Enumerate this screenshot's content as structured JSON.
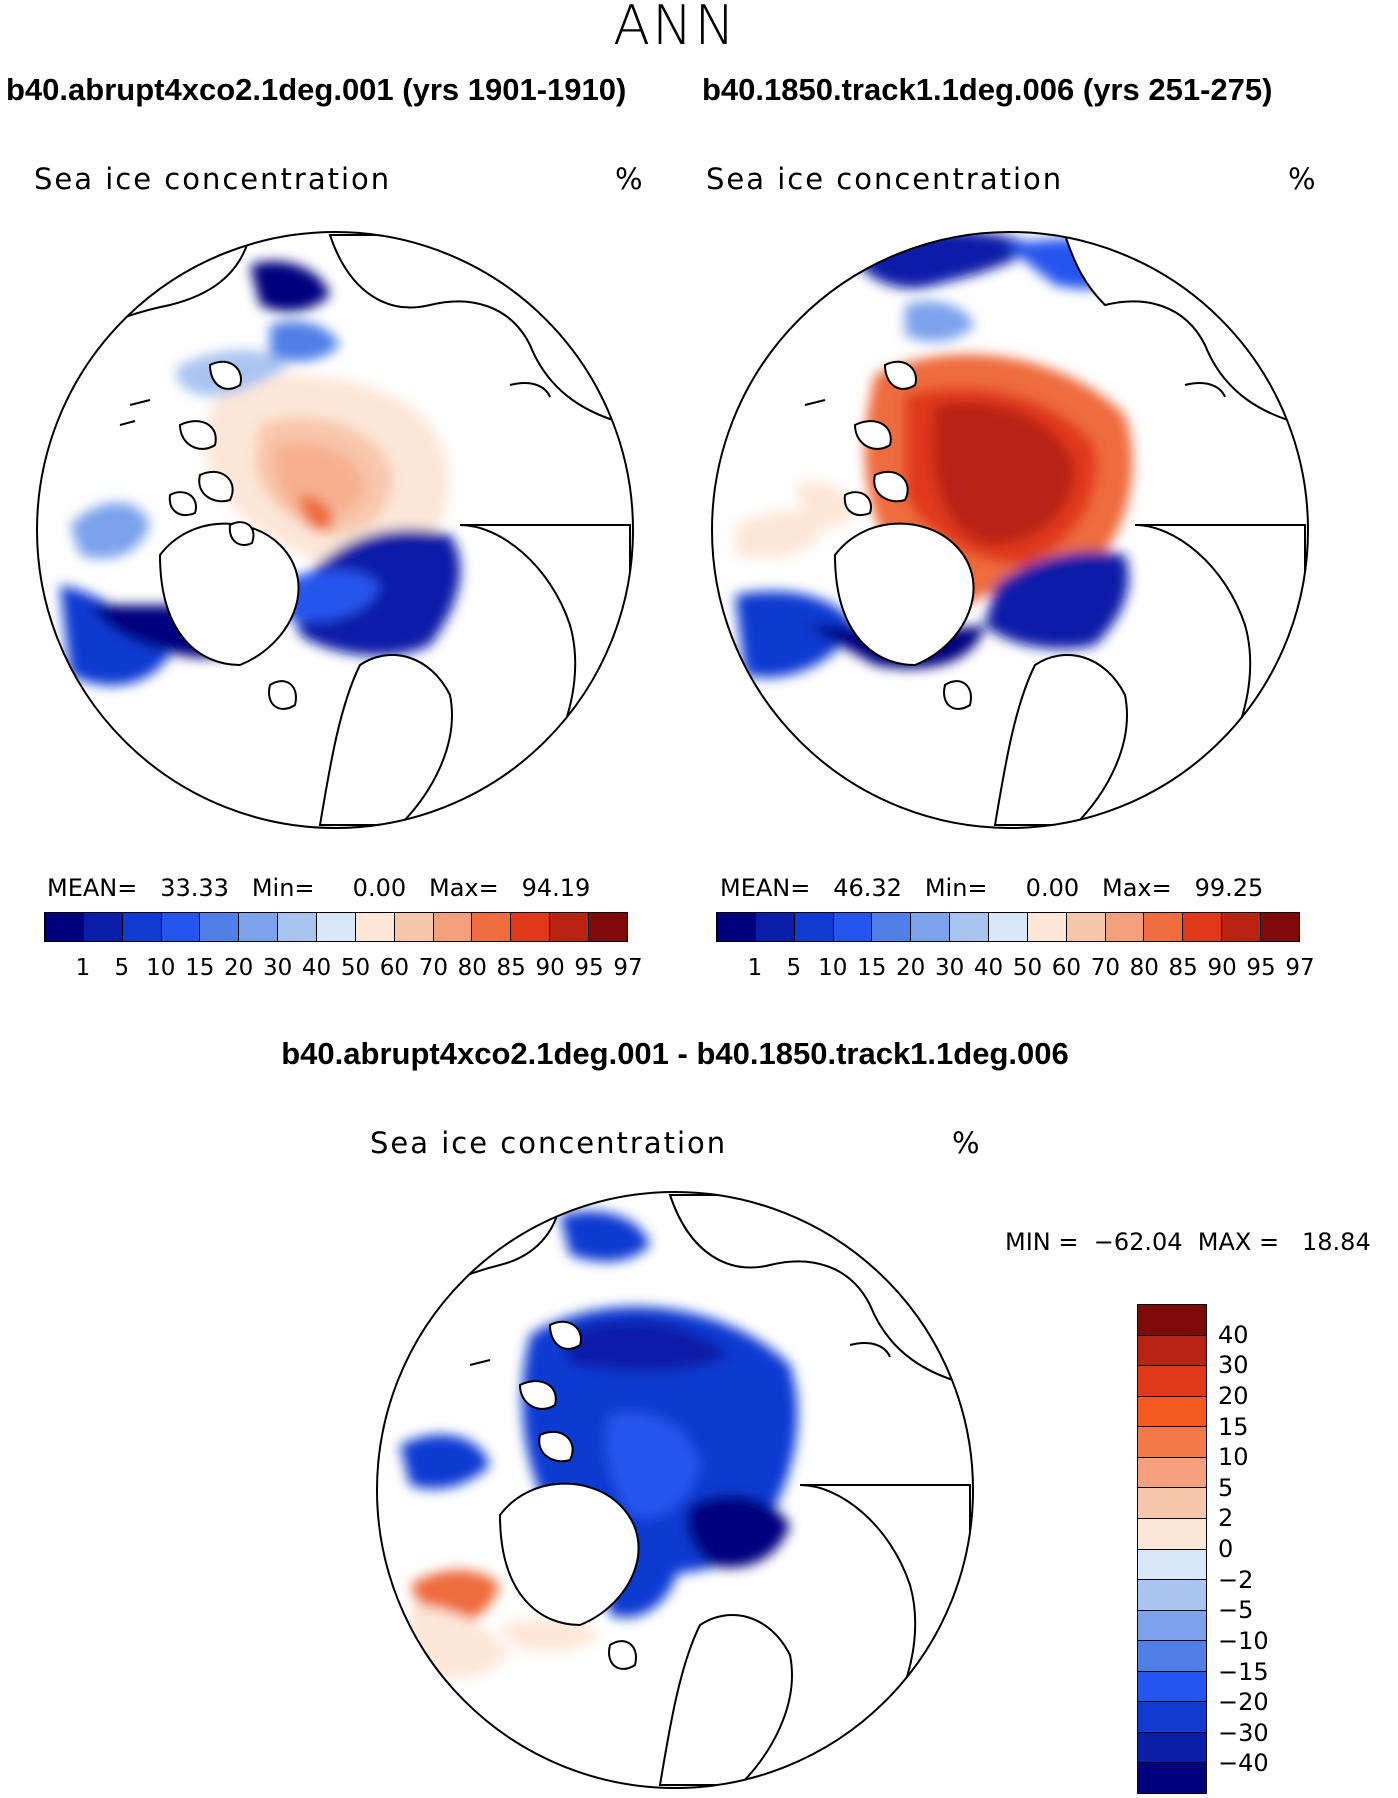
{
  "season": "ANN",
  "panels": [
    {
      "case_title": "b40.abrupt4xco2.1deg.001 (yrs 1901-1910)",
      "variable": "Sea ice concentration",
      "units": "%",
      "stats_text": "MEAN=   33.33   Min=     0.00   Max=   94.19",
      "mean": 33.33,
      "min": 0.0,
      "max": 94.19
    },
    {
      "case_title": "b40.1850.track1.1deg.006 (yrs 251-275)",
      "variable": "Sea ice concentration",
      "units": "%",
      "stats_text": "MEAN=   46.32   Min=     0.00   Max=   99.25",
      "mean": 46.32,
      "min": 0.0,
      "max": 99.25
    }
  ],
  "diff_panel": {
    "title": "b40.abrupt4xco2.1deg.001 - b40.1850.track1.1deg.006",
    "variable": "Sea ice concentration",
    "units": "%",
    "stats_text": "MIN =  −62.04  MAX =   18.84",
    "min": -62.04,
    "max": 18.84
  },
  "field_colorbar": {
    "ticks": [
      "1",
      "5",
      "10",
      "15",
      "20",
      "30",
      "40",
      "50",
      "60",
      "70",
      "80",
      "85",
      "90",
      "95",
      "97"
    ],
    "colors": [
      "#00007f",
      "#0a1fa8",
      "#0f3bd2",
      "#2554ee",
      "#4f7fe7",
      "#7ca2ec",
      "#a9c4f1",
      "#d8e8f9",
      "#fde7d8",
      "#f8c6ab",
      "#f4a07c",
      "#ee6c3d",
      "#e0391a",
      "#b82312",
      "#7f0a0a"
    ]
  },
  "diff_colorbar": {
    "ticks": [
      "40",
      "30",
      "20",
      "15",
      "10",
      "5",
      "2",
      "0",
      "−2",
      "−5",
      "−10",
      "−15",
      "−20",
      "−30",
      "−40"
    ],
    "colors": [
      "#7f0a0a",
      "#b82312",
      "#e0391a",
      "#f65a1e",
      "#f27a46",
      "#f4a07c",
      "#f8c6ab",
      "#fde7d8",
      "#d8e8f9",
      "#a9c4f1",
      "#7ca2ec",
      "#4f7fe7",
      "#2554ee",
      "#0f3bd2",
      "#0a1fa8",
      "#00007f"
    ]
  }
}
